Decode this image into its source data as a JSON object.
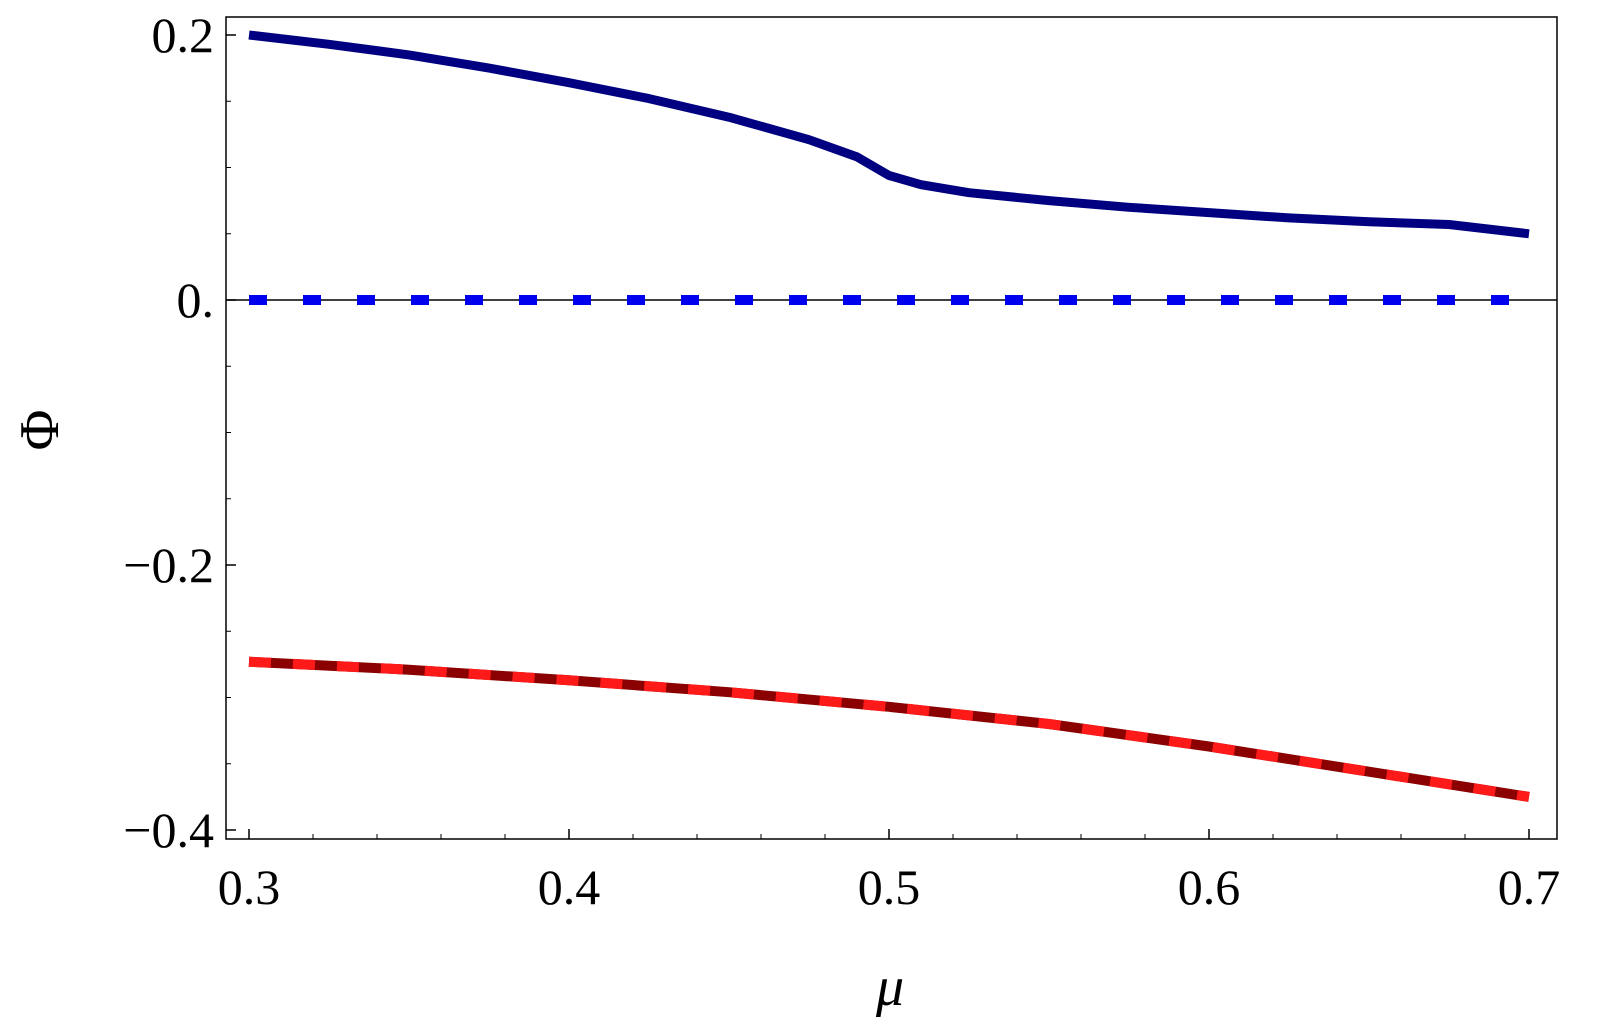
{
  "chart_data": {
    "type": "line",
    "title": "",
    "xlabel": "μ",
    "ylabel": "Φ",
    "xlim": [
      0.3,
      0.7
    ],
    "ylim": [
      -0.4,
      0.2
    ],
    "xticks": [
      0.3,
      0.4,
      0.5,
      0.6,
      0.7
    ],
    "xtick_labels": [
      "0.3",
      "0.4",
      "0.5",
      "0.6",
      "0.7"
    ],
    "yticks": [
      -0.4,
      -0.2,
      0.0,
      0.2
    ],
    "ytick_labels": [
      "−0.4",
      "−0.2",
      "0.",
      "0.2"
    ],
    "grid": false,
    "series": [
      {
        "color": "#000080",
        "style": "solid",
        "x": [
          0.3,
          0.325,
          0.35,
          0.375,
          0.4,
          0.425,
          0.45,
          0.475,
          0.49,
          0.5,
          0.51,
          0.525,
          0.55,
          0.575,
          0.6,
          0.625,
          0.65,
          0.675,
          0.7
        ],
        "y": [
          0.2,
          0.193,
          0.185,
          0.175,
          0.164,
          0.152,
          0.138,
          0.121,
          0.108,
          0.094,
          0.087,
          0.081,
          0.075,
          0.07,
          0.066,
          0.062,
          0.059,
          0.057,
          0.05
        ]
      },
      {
        "color": "#0000ee",
        "style": "dashed",
        "x": [
          0.3,
          0.7
        ],
        "y": [
          0.0,
          0.0
        ]
      },
      {
        "color": "#8b0000",
        "dash_color": "#ff1a1a",
        "style": "dashed-overlay",
        "x": [
          0.3,
          0.35,
          0.4,
          0.45,
          0.5,
          0.55,
          0.6,
          0.65,
          0.7
        ],
        "y": [
          -0.273,
          -0.279,
          -0.287,
          -0.296,
          -0.307,
          -0.32,
          -0.337,
          -0.356,
          -0.375
        ]
      }
    ]
  }
}
